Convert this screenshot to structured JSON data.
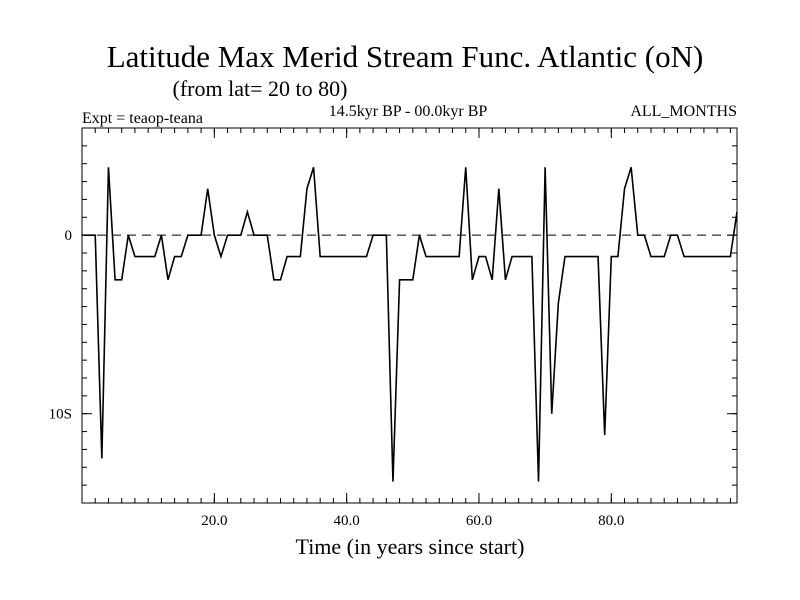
{
  "title": "Latitude Max Merid Stream Func. Atlantic (oN)",
  "subtitle": "(from lat= 20 to 80)",
  "header": {
    "left": "Expt = teaop-teana",
    "center": "14.5kyr BP - 00.0kyr BP",
    "right": "ALL_MONTHS"
  },
  "chart_data": {
    "type": "line",
    "title": "Latitude Max Merid Stream Func. Atlantic (oN)",
    "xlabel": "Time (in years since start)",
    "ylabel": "",
    "xlim": [
      0,
      99
    ],
    "ylim": [
      -15,
      6
    ],
    "x_ticks": [
      {
        "value": 20,
        "label": "20.0"
      },
      {
        "value": 40,
        "label": "40.0"
      },
      {
        "value": 60,
        "label": "60.0"
      },
      {
        "value": 80,
        "label": "80.0"
      }
    ],
    "y_ticks": [
      {
        "value": 0,
        "label": "0"
      },
      {
        "value": -10,
        "label": "10S"
      }
    ],
    "zero_line": 0,
    "series": [
      {
        "name": "teaop-teana",
        "x": [
          0,
          1,
          2,
          3,
          4,
          5,
          6,
          7,
          8,
          9,
          10,
          11,
          12,
          13,
          14,
          15,
          16,
          17,
          18,
          19,
          20,
          21,
          22,
          23,
          24,
          25,
          26,
          27,
          28,
          29,
          30,
          31,
          32,
          33,
          34,
          35,
          36,
          37,
          38,
          39,
          40,
          41,
          42,
          43,
          44,
          45,
          46,
          47,
          48,
          49,
          50,
          51,
          52,
          53,
          54,
          55,
          56,
          57,
          58,
          59,
          60,
          61,
          62,
          63,
          64,
          65,
          66,
          67,
          68,
          69,
          70,
          71,
          72,
          73,
          74,
          75,
          76,
          77,
          78,
          79,
          80,
          81,
          82,
          83,
          84,
          85,
          86,
          87,
          88,
          89,
          90,
          91,
          92,
          93,
          94,
          95,
          96,
          97,
          98,
          99
        ],
        "values": [
          0,
          0,
          0,
          -12.5,
          3.8,
          -2.5,
          -2.5,
          0,
          -1.2,
          -1.2,
          -1.2,
          -1.2,
          0,
          -2.5,
          -1.2,
          -1.2,
          0,
          0,
          0,
          2.6,
          0,
          -1.2,
          0,
          0,
          0,
          1.3,
          0,
          0,
          0,
          -2.5,
          -2.5,
          -1.2,
          -1.2,
          -1.2,
          2.6,
          3.8,
          -1.2,
          -1.2,
          -1.2,
          -1.2,
          -1.2,
          -1.2,
          -1.2,
          -1.2,
          0,
          0,
          0,
          -13.8,
          -2.5,
          -2.5,
          -2.5,
          0,
          -1.2,
          -1.2,
          -1.2,
          -1.2,
          -1.2,
          -1.2,
          3.8,
          -2.5,
          -1.2,
          -1.2,
          -2.5,
          2.6,
          -2.5,
          -1.2,
          -1.2,
          -1.2,
          -1.2,
          -13.8,
          3.8,
          -10.0,
          -3.8,
          -1.2,
          -1.2,
          -1.2,
          -1.2,
          -1.2,
          -1.2,
          -11.2,
          -1.2,
          -1.2,
          2.6,
          3.8,
          0,
          0,
          -1.2,
          -1.2,
          -1.2,
          0,
          0,
          -1.2,
          -1.2,
          -1.2,
          -1.2,
          -1.2,
          -1.2,
          -1.2,
          -1.2,
          1.3
        ]
      }
    ]
  }
}
